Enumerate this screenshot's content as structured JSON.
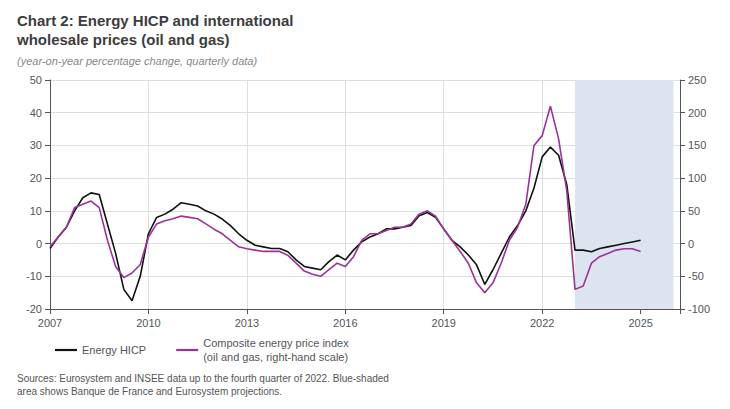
{
  "chart_data": {
    "type": "line",
    "title": "Chart 2: Energy HICP and international\nwholesale prices (oil and gas)",
    "subtitle": "(year-on-year percentage change, quarterly data)",
    "annotations": [
      "Sources: Eurosystem and INSEE data up to the fourth quarter of 2022. Blue-shaded\narea shows Banque de France and Eurosystem projections."
    ],
    "xlim": [
      2007.0,
      2026.2
    ],
    "xticks": [
      2007,
      2010,
      2013,
      2016,
      2019,
      2022,
      2025
    ],
    "ylim": [
      -20,
      50
    ],
    "yticks": [
      -20,
      -10,
      0,
      10,
      20,
      30,
      40,
      50
    ],
    "y2lim": [
      -100,
      250
    ],
    "y2ticks": [
      -100,
      -50,
      0,
      50,
      100,
      150,
      200,
      250
    ],
    "grid": true,
    "legend": "bottom",
    "bands": [
      {
        "x": [
          2023.0,
          2026.0
        ],
        "color": "#dce4f0"
      }
    ],
    "x": [
      2007.0,
      2007.25,
      2007.5,
      2007.75,
      2008.0,
      2008.25,
      2008.5,
      2008.75,
      2009.0,
      2009.25,
      2009.5,
      2009.75,
      2010.0,
      2010.25,
      2010.5,
      2010.75,
      2011.0,
      2011.25,
      2011.5,
      2011.75,
      2012.0,
      2012.25,
      2012.5,
      2012.75,
      2013.0,
      2013.25,
      2013.5,
      2013.75,
      2014.0,
      2014.25,
      2014.5,
      2014.75,
      2015.0,
      2015.25,
      2015.5,
      2015.75,
      2016.0,
      2016.25,
      2016.5,
      2016.75,
      2017.0,
      2017.25,
      2017.5,
      2017.75,
      2018.0,
      2018.25,
      2018.5,
      2018.75,
      2019.0,
      2019.25,
      2019.5,
      2019.75,
      2020.0,
      2020.25,
      2020.5,
      2020.75,
      2021.0,
      2021.25,
      2021.5,
      2021.75,
      2022.0,
      2022.25,
      2022.5,
      2022.75,
      2023.0,
      2023.25,
      2023.5,
      2023.75,
      2024.0,
      2024.25,
      2024.5,
      2024.75,
      2025.0
    ],
    "series": [
      {
        "name": "Energy HICP",
        "color": "#111111",
        "values": [
          -1.5,
          2.0,
          5.0,
          10.0,
          14.0,
          15.5,
          15.0,
          6.0,
          -3.0,
          -14.0,
          -17.5,
          -10.0,
          3.0,
          8.0,
          9.0,
          10.5,
          12.5,
          12.0,
          11.5,
          10.0,
          9.0,
          7.5,
          5.5,
          3.0,
          1.0,
          -0.5,
          -1.0,
          -1.5,
          -1.5,
          -2.5,
          -5.0,
          -7.0,
          -7.5,
          -8.0,
          -5.5,
          -3.5,
          -5.0,
          -2.0,
          0.5,
          2.0,
          3.0,
          4.5,
          4.5,
          5.0,
          5.5,
          8.5,
          9.5,
          8.0,
          4.5,
          1.0,
          -1.0,
          -3.5,
          -6.5,
          -12.5,
          -8.0,
          -3.0,
          2.0,
          5.5,
          10.0,
          17.0,
          26.5,
          29.5,
          27.0,
          18.0,
          -2.0,
          -2.0,
          -2.5,
          -1.5,
          -1.0,
          -0.5,
          0.0,
          0.5,
          1.0
        ]
      },
      {
        "name": "Composite energy price index\n(oil and gas, right-hand scale)",
        "color": "#993399",
        "axis": "y2",
        "values": [
          -5.0,
          10.0,
          25.0,
          55.0,
          60.0,
          65.0,
          55.0,
          5.0,
          -35.0,
          -52.0,
          -45.0,
          -32.0,
          10.0,
          30.0,
          35.0,
          38.0,
          42.0,
          40.0,
          38.0,
          30.0,
          22.0,
          15.0,
          5.0,
          -5.0,
          -8.0,
          -10.0,
          -12.0,
          -12.0,
          -12.0,
          -18.0,
          -30.0,
          -42.0,
          -47.0,
          -50.0,
          -40.0,
          -30.0,
          -35.0,
          -20.0,
          5.0,
          15.0,
          15.0,
          20.0,
          25.0,
          25.0,
          30.0,
          45.0,
          50.0,
          42.0,
          22.0,
          5.0,
          -12.0,
          -30.0,
          -60.0,
          -75.0,
          -60.0,
          -30.0,
          5.0,
          25.0,
          60.0,
          150.0,
          165.0,
          210.0,
          160.0,
          80.0,
          -70.0,
          -65.0,
          -30.0,
          -20.0,
          -15.0,
          -10.0,
          -8.0,
          -8.0,
          -12.0
        ]
      }
    ]
  }
}
